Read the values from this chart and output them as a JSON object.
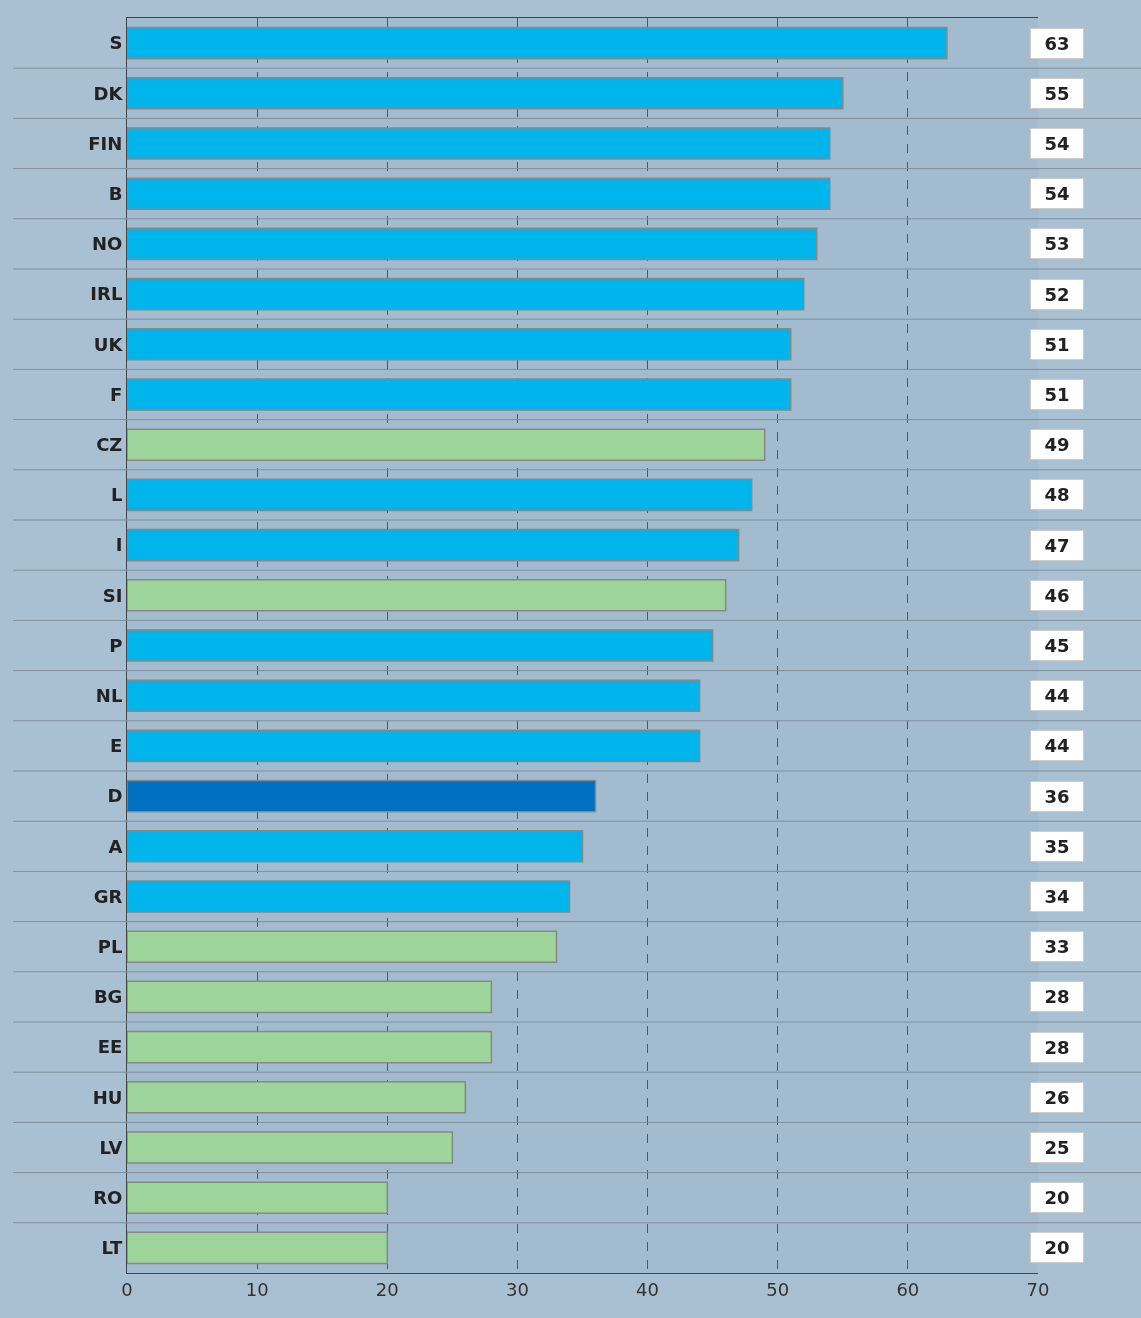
{
  "chart_data": {
    "type": "bar",
    "orientation": "horizontal",
    "categories": [
      "S",
      "DK",
      "FIN",
      "B",
      "NO",
      "IRL",
      "UK",
      "F",
      "CZ",
      "L",
      "I",
      "SI",
      "P",
      "NL",
      "E",
      "D",
      "A",
      "GR",
      "PL",
      "BG",
      "EE",
      "HU",
      "LV",
      "RO",
      "LT"
    ],
    "values": [
      63,
      55,
      54,
      54,
      53,
      52,
      51,
      51,
      49,
      48,
      47,
      46,
      45,
      44,
      44,
      36,
      35,
      34,
      33,
      28,
      28,
      26,
      25,
      20,
      20
    ],
    "colors": [
      "#00b4ec",
      "#00b4ec",
      "#00b4ec",
      "#00b4ec",
      "#00b4ec",
      "#00b4ec",
      "#00b4ec",
      "#00b4ec",
      "#9dd49a",
      "#00b4ec",
      "#00b4ec",
      "#9dd49a",
      "#00b4ec",
      "#00b4ec",
      "#00b4ec",
      "#0070c0",
      "#00b4ec",
      "#00b4ec",
      "#9dd49a",
      "#9dd49a",
      "#9dd49a",
      "#9dd49a",
      "#9dd49a",
      "#9dd49a",
      "#9dd49a"
    ],
    "xlim": [
      0,
      70
    ],
    "xticks": [
      0,
      10,
      20,
      30,
      40,
      50,
      60,
      70
    ],
    "grid": "x",
    "data_labels": true
  }
}
